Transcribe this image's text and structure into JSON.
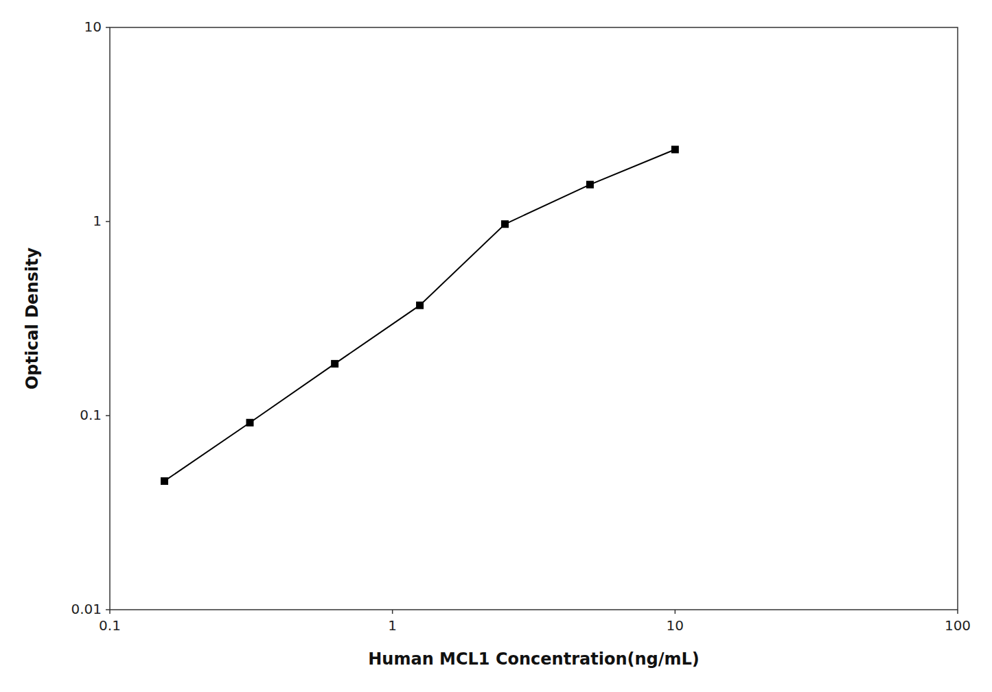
{
  "chart_data": {
    "type": "line",
    "x": [
      0.156,
      0.313,
      0.625,
      1.25,
      2.5,
      5.0,
      10.0
    ],
    "values": [
      0.046,
      0.092,
      0.185,
      0.37,
      0.97,
      1.55,
      2.35
    ],
    "xlabel": "Human MCL1 Concentration(ng/mL)",
    "ylabel": "Optical Density",
    "xlim": [
      0.1,
      100
    ],
    "ylim": [
      0.01,
      10
    ],
    "xticks": [
      0.1,
      1,
      10,
      100
    ],
    "yticks": [
      0.01,
      0.1,
      1,
      10
    ],
    "log": true,
    "grid": false,
    "color": "#000000",
    "marker": "square"
  }
}
